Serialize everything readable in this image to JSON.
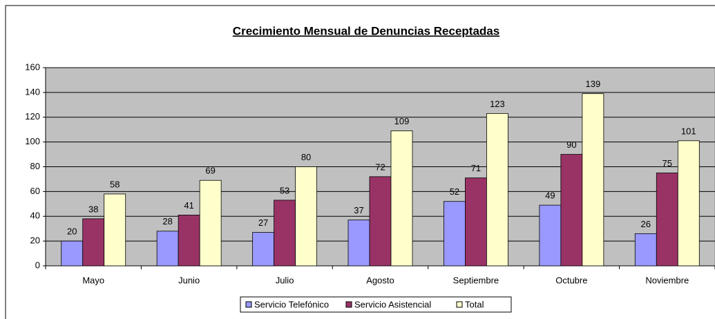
{
  "chart_data": {
    "type": "bar",
    "title": "Crecimiento Mensual de Denuncias Receptadas",
    "categories": [
      "Mayo",
      "Junio",
      "Julio",
      "Agosto",
      "Septiembre",
      "Octubre",
      "Noviembre"
    ],
    "series": [
      {
        "name": "Servicio Telefónico",
        "color": "#9999ff",
        "values": [
          20,
          28,
          27,
          37,
          52,
          49,
          26
        ]
      },
      {
        "name": "Servicio Asistencial",
        "color": "#993366",
        "values": [
          38,
          41,
          53,
          72,
          71,
          90,
          75
        ]
      },
      {
        "name": "Total",
        "color": "#ffffcc",
        "values": [
          58,
          69,
          80,
          109,
          123,
          139,
          101
        ]
      }
    ],
    "ylim": [
      0,
      160
    ],
    "yticks": [
      0,
      20,
      40,
      60,
      80,
      100,
      120,
      140,
      160
    ],
    "grid": true,
    "legend": "bottom"
  }
}
